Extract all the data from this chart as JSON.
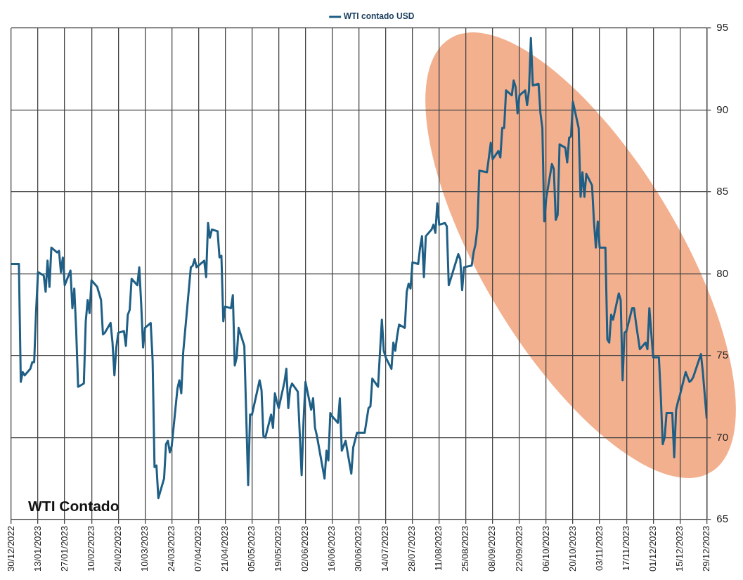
{
  "chart_data": {
    "type": "line",
    "annotations": [
      "WTI Contado"
    ],
    "x": [
      "2022-12-30",
      "2023-01-03",
      "2023-01-04",
      "2023-01-05",
      "2023-01-06",
      "2023-01-09",
      "2023-01-10",
      "2023-01-11",
      "2023-01-12",
      "2023-01-13",
      "2023-01-16",
      "2023-01-17",
      "2023-01-18",
      "2023-01-19",
      "2023-01-20",
      "2023-01-23",
      "2023-01-24",
      "2023-01-25",
      "2023-01-26",
      "2023-01-27",
      "2023-01-30",
      "2023-01-31",
      "2023-02-01",
      "2023-02-02",
      "2023-02-03",
      "2023-02-06",
      "2023-02-07",
      "2023-02-08",
      "2023-02-09",
      "2023-02-10",
      "2023-02-13",
      "2023-02-15",
      "2023-02-16",
      "2023-02-17",
      "2023-02-20",
      "2023-02-21",
      "2023-02-22",
      "2023-02-23",
      "2023-02-24",
      "2023-02-27",
      "2023-02-28",
      "2023-03-01",
      "2023-03-02",
      "2023-03-03",
      "2023-03-06",
      "2023-03-07",
      "2023-03-08",
      "2023-03-09",
      "2023-03-10",
      "2023-03-13",
      "2023-03-14",
      "2023-03-15",
      "2023-03-16",
      "2023-03-17",
      "2023-03-20",
      "2023-03-21",
      "2023-03-22",
      "2023-03-23",
      "2023-03-24",
      "2023-03-27",
      "2023-03-28",
      "2023-03-29",
      "2023-03-30",
      "2023-04-03",
      "2023-04-04",
      "2023-04-05",
      "2023-04-06",
      "2023-04-10",
      "2023-04-11",
      "2023-04-12",
      "2023-04-13",
      "2023-04-14",
      "2023-04-17",
      "2023-04-18",
      "2023-04-19",
      "2023-04-20",
      "2023-04-21",
      "2023-04-24",
      "2023-04-25",
      "2023-04-26",
      "2023-04-27",
      "2023-04-28",
      "2023-05-01",
      "2023-05-03",
      "2023-05-04",
      "2023-05-05",
      "2023-05-09",
      "2023-05-10",
      "2023-05-11",
      "2023-05-12",
      "2023-05-15",
      "2023-05-16",
      "2023-05-17",
      "2023-05-18",
      "2023-05-19",
      "2023-05-22",
      "2023-05-23",
      "2023-05-24",
      "2023-05-25",
      "2023-05-26",
      "2023-05-29",
      "2023-05-31",
      "2023-06-01",
      "2023-06-02",
      "2023-06-05",
      "2023-06-06",
      "2023-06-07",
      "2023-06-08",
      "2023-06-12",
      "2023-06-13",
      "2023-06-14",
      "2023-06-15",
      "2023-06-16",
      "2023-06-19",
      "2023-06-20",
      "2023-06-21",
      "2023-06-23",
      "2023-06-26",
      "2023-06-27",
      "2023-06-29",
      "2023-07-03",
      "2023-07-05",
      "2023-07-06",
      "2023-07-07",
      "2023-07-10",
      "2023-07-11",
      "2023-07-12",
      "2023-07-13",
      "2023-07-14",
      "2023-07-17",
      "2023-07-18",
      "2023-07-19",
      "2023-07-20",
      "2023-07-21",
      "2023-07-24",
      "2023-07-25",
      "2023-07-26",
      "2023-07-27",
      "2023-07-28",
      "2023-07-31",
      "2023-08-01",
      "2023-08-02",
      "2023-08-03",
      "2023-08-04",
      "2023-08-07",
      "2023-08-08",
      "2023-08-09",
      "2023-08-10",
      "2023-08-11",
      "2023-08-14",
      "2023-08-15",
      "2023-08-16",
      "2023-08-21",
      "2023-08-22",
      "2023-08-23",
      "2023-08-24",
      "2023-08-28",
      "2023-08-29",
      "2023-08-30",
      "2023-08-31",
      "2023-09-01",
      "2023-09-05",
      "2023-09-06",
      "2023-09-07",
      "2023-09-08",
      "2023-09-11",
      "2023-09-12",
      "2023-09-13",
      "2023-09-14",
      "2023-09-15",
      "2023-09-18",
      "2023-09-19",
      "2023-09-20",
      "2023-09-21",
      "2023-09-22",
      "2023-09-25",
      "2023-09-26",
      "2023-09-27",
      "2023-09-28",
      "2023-09-29",
      "2023-10-02",
      "2023-10-03",
      "2023-10-04",
      "2023-10-05",
      "2023-10-06",
      "2023-10-09",
      "2023-10-10",
      "2023-10-11",
      "2023-10-12",
      "2023-10-13",
      "2023-10-16",
      "2023-10-17",
      "2023-10-18",
      "2023-10-19",
      "2023-10-20",
      "2023-10-23",
      "2023-10-24",
      "2023-10-25",
      "2023-10-26",
      "2023-10-27",
      "2023-10-30",
      "2023-10-31",
      "2023-11-01",
      "2023-11-02",
      "2023-11-03",
      "2023-11-06",
      "2023-11-07",
      "2023-11-08",
      "2023-11-09",
      "2023-11-10",
      "2023-11-13",
      "2023-11-14",
      "2023-11-15",
      "2023-11-16",
      "2023-11-17",
      "2023-11-20",
      "2023-11-21",
      "2023-11-22",
      "2023-11-24",
      "2023-11-27",
      "2023-11-28",
      "2023-11-29",
      "2023-11-30",
      "2023-12-01",
      "2023-12-04",
      "2023-12-05",
      "2023-12-06",
      "2023-12-07",
      "2023-12-08",
      "2023-12-11",
      "2023-12-12",
      "2023-12-13",
      "2023-12-14",
      "2023-12-15",
      "2023-12-18",
      "2023-12-19",
      "2023-12-20",
      "2023-12-21",
      "2023-12-22",
      "2023-12-26",
      "2023-12-27",
      "2023-12-29"
    ],
    "series": [
      {
        "name": "WTI contado USD",
        "color": "#1f5f85",
        "values": [
          80.6,
          80.6,
          73.4,
          74.0,
          73.8,
          74.2,
          74.6,
          74.6,
          77.7,
          80.1,
          79.9,
          78.9,
          80.8,
          79.2,
          81.6,
          81.3,
          81.4,
          80.1,
          81.0,
          79.3,
          80.2,
          77.9,
          79.1,
          76.5,
          73.1,
          73.3,
          77.1,
          78.4,
          77.6,
          79.6,
          79.2,
          78.4,
          76.3,
          76.4,
          77.0,
          75.8,
          73.8,
          75.5,
          76.4,
          76.5,
          75.6,
          77.5,
          77.8,
          79.7,
          79.3,
          80.4,
          78.2,
          75.5,
          76.7,
          77.0,
          74.7,
          68.2,
          68.3,
          66.3,
          67.5,
          69.6,
          69.8,
          69.1,
          69.5,
          73.0,
          73.5,
          72.7,
          75.2,
          80.4,
          80.5,
          80.9,
          80.4,
          80.8,
          79.8,
          83.1,
          82.2,
          82.7,
          82.6,
          81.0,
          81.1,
          77.1,
          78.0,
          77.9,
          78.7,
          74.4,
          74.9,
          76.7,
          75.6,
          67.1,
          71.4,
          71.4,
          73.5,
          72.9,
          70.1,
          70.0,
          71.4,
          70.6,
          72.7,
          72.2,
          71.8,
          73.4,
          74.2,
          71.8,
          73.0,
          73.3,
          72.8,
          67.7,
          71.0,
          73.4,
          71.7,
          72.4,
          70.6,
          70.1,
          67.5,
          69.2,
          68.6,
          71.5,
          71.3,
          70.9,
          72.4,
          69.2,
          69.8,
          67.8,
          69.4,
          70.3,
          70.3,
          71.8,
          71.9,
          73.6,
          73.1,
          75.2,
          77.2,
          75.3,
          74.9,
          74.2,
          75.8,
          75.3,
          76.2,
          76.9,
          76.7,
          78.9,
          79.4,
          79.1,
          80.7,
          80.6,
          81.6,
          82.3,
          79.8,
          82.3,
          82.7,
          83.0,
          82.5,
          84.3,
          83.0,
          83.1,
          82.9,
          79.3,
          81.2,
          80.9,
          79.0,
          80.4,
          80.5,
          81.3,
          81.8,
          82.8,
          86.3,
          86.2,
          87.1,
          88.0,
          87.0,
          87.5,
          87.1,
          88.9,
          88.9,
          91.2,
          90.9,
          91.8,
          91.4,
          89.8,
          90.9,
          91.2,
          90.3,
          91.2,
          94.4,
          91.5,
          91.6,
          89.8,
          88.9,
          83.2,
          84.6,
          86.7,
          86.4,
          83.3,
          83.6,
          87.9,
          87.7,
          86.8,
          88.3,
          88.4,
          90.5,
          88.9,
          84.7,
          86.2,
          84.7,
          86.1,
          85.4,
          83.2,
          81.6,
          83.2,
          81.6,
          81.6,
          76.0,
          75.8,
          77.5,
          77.2,
          78.8,
          78.4,
          73.5,
          76.4,
          76.5,
          77.9,
          77.9,
          77.0,
          75.4,
          75.8,
          75.4,
          77.9,
          76.4,
          74.9,
          74.9,
          72.5,
          69.6,
          70.0,
          71.5,
          71.5,
          68.8,
          71.7,
          72.2,
          72.6,
          74.0,
          73.7,
          73.4,
          73.5,
          73.7,
          75.1,
          74.0,
          71.2
        ]
      }
    ],
    "xlim": [
      "2022-12-30",
      "2023-12-29"
    ],
    "xticks": [
      {
        "value": "2022-12-30",
        "label": "30/12/2022"
      },
      {
        "value": "2023-01-13",
        "label": "13/01/2023"
      },
      {
        "value": "2023-01-27",
        "label": "27/01/2023"
      },
      {
        "value": "2023-02-10",
        "label": "10/02/2023"
      },
      {
        "value": "2023-02-24",
        "label": "24/02/2023"
      },
      {
        "value": "2023-03-10",
        "label": "10/03/2023"
      },
      {
        "value": "2023-03-24",
        "label": "24/03/2023"
      },
      {
        "value": "2023-04-07",
        "label": "07/04/2023"
      },
      {
        "value": "2023-04-21",
        "label": "21/04/2023"
      },
      {
        "value": "2023-05-05",
        "label": "05/05/2023"
      },
      {
        "value": "2023-05-19",
        "label": "19/05/2023"
      },
      {
        "value": "2023-06-02",
        "label": "02/06/2023"
      },
      {
        "value": "2023-06-16",
        "label": "16/06/2023"
      },
      {
        "value": "2023-06-30",
        "label": "30/06/2023"
      },
      {
        "value": "2023-07-14",
        "label": "14/07/2023"
      },
      {
        "value": "2023-07-28",
        "label": "28/07/2023"
      },
      {
        "value": "2023-08-11",
        "label": "11/08/2023"
      },
      {
        "value": "2023-08-25",
        "label": "25/08/2023"
      },
      {
        "value": "2023-09-08",
        "label": "08/09/2023"
      },
      {
        "value": "2023-09-22",
        "label": "22/09/2023"
      },
      {
        "value": "2023-10-06",
        "label": "06/10/2023"
      },
      {
        "value": "2023-10-20",
        "label": "20/10/2023"
      },
      {
        "value": "2023-11-03",
        "label": "03/11/2023"
      },
      {
        "value": "2023-11-17",
        "label": "17/11/2023"
      },
      {
        "value": "2023-12-01",
        "label": "01/12/2023"
      },
      {
        "value": "2023-12-15",
        "label": "15/12/2023"
      },
      {
        "value": "2023-12-29",
        "label": "29/12/2023"
      }
    ],
    "ylim": [
      65,
      95
    ],
    "yticks": [
      65,
      70,
      75,
      80,
      85,
      90,
      95
    ],
    "grid": true,
    "legend": "top",
    "marker": "none",
    "line_style": "solid"
  }
}
